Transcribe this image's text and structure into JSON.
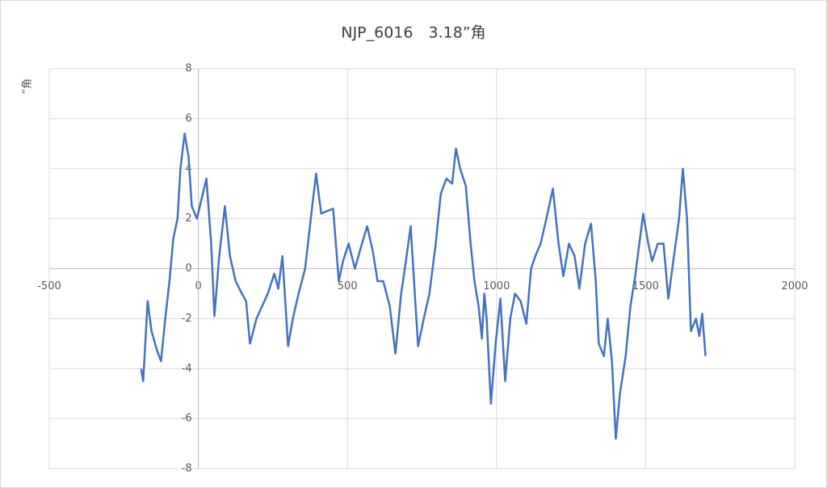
{
  "chart_data": {
    "type": "line",
    "title": "NJP_6016　3.18”角",
    "y_label": "”角",
    "x": [
      -192,
      -185,
      -170,
      -157,
      -138,
      -125,
      -111,
      -97,
      -84,
      -70,
      -60,
      -46,
      -33,
      -22,
      -5,
      11,
      27,
      43,
      54,
      70,
      89,
      106,
      125,
      146,
      160,
      173,
      195,
      214,
      233,
      255,
      268,
      282,
      301,
      317,
      336,
      358,
      377,
      395,
      412,
      431,
      452,
      471,
      485,
      504,
      525,
      544,
      566,
      585,
      601,
      620,
      642,
      661,
      680,
      696,
      712,
      726,
      737,
      756,
      775,
      796,
      813,
      832,
      851,
      864,
      878,
      897,
      913,
      926,
      940,
      951,
      959,
      967,
      981,
      997,
      1013,
      1029,
      1046,
      1062,
      1081,
      1100,
      1116,
      1130,
      1148,
      1167,
      1189,
      1208,
      1224,
      1243,
      1262,
      1278,
      1297,
      1317,
      1333,
      1343,
      1360,
      1373,
      1387,
      1400,
      1414,
      1433,
      1449,
      1465,
      1479,
      1492,
      1509,
      1522,
      1541,
      1560,
      1576,
      1595,
      1612,
      1625,
      1639,
      1652,
      1669,
      1680,
      1690,
      1701
    ],
    "series": [
      {
        "color": "#4472c4",
        "values": [
          -4,
          -4.5,
          -1.3,
          -2.5,
          -3.3,
          -3.7,
          -2,
          -0.5,
          1.2,
          2,
          4,
          5.4,
          4.5,
          2.5,
          2,
          2.8,
          3.6,
          1,
          -1.9,
          0.5,
          2.5,
          0.5,
          -0.5,
          -1,
          -1.3,
          -3,
          -2,
          -1.5,
          -1,
          -0.2,
          -0.8,
          0.5,
          -3.1,
          -2,
          -1,
          0,
          2,
          3.8,
          2.2,
          2.3,
          2.4,
          -0.5,
          0.3,
          1,
          0,
          0.8,
          1.7,
          0.7,
          -0.5,
          -0.5,
          -1.5,
          -3.4,
          -1,
          0.3,
          1.7,
          -1,
          -3.1,
          -2,
          -1,
          1,
          3,
          3.6,
          3.4,
          4.8,
          4,
          3.3,
          1,
          -0.5,
          -1.5,
          -2.8,
          -1,
          -2,
          -5.4,
          -3,
          -1.2,
          -4.5,
          -2,
          -1,
          -1.3,
          -2.2,
          0,
          0.5,
          1,
          2,
          3.2,
          1,
          -0.3,
          1,
          0.5,
          -0.8,
          1,
          1.8,
          -0.5,
          -3,
          -3.5,
          -2,
          -3.7,
          -6.8,
          -5,
          -3.5,
          -1.5,
          -0.3,
          1,
          2.2,
          1,
          0.3,
          1,
          1,
          -1.2,
          0.5,
          2,
          4,
          2,
          -2.5,
          -2,
          -2.7,
          -1.8,
          -3.5
        ]
      }
    ],
    "xlim": [
      -500,
      2000
    ],
    "xticks": [
      -500,
      0,
      500,
      1000,
      1500,
      2000
    ],
    "ylim": [
      -8,
      8
    ],
    "yticks": [
      -8,
      -6,
      -4,
      -2,
      0,
      2,
      4,
      6,
      8
    ],
    "grid": true
  }
}
